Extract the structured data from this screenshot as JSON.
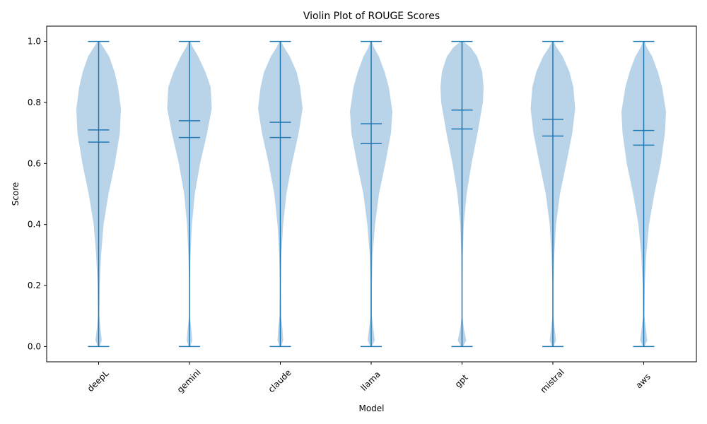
{
  "chart_data": {
    "type": "violin",
    "title": "Violin Plot of ROUGE Scores",
    "xlabel": "Model",
    "ylabel": "Score",
    "ylim": [
      -0.05,
      1.05
    ],
    "yticks": [
      0.0,
      0.2,
      0.4,
      0.6,
      0.8,
      1.0
    ],
    "ytick_labels": [
      "0.0",
      "0.2",
      "0.4",
      "0.6",
      "0.8",
      "1.0"
    ],
    "colors": {
      "body": "#b9d4e9",
      "line": "#1f77b4"
    },
    "categories": [
      "deepL",
      "gemini",
      "claude",
      "llama",
      "gpt",
      "mistral",
      "aws"
    ],
    "series": [
      {
        "name": "deepL",
        "min": 0.0,
        "max": 1.0,
        "mean": 0.71,
        "median": 0.67,
        "density": [
          [
            0.0,
            0.02
          ],
          [
            0.02,
            0.09
          ],
          [
            0.06,
            0.05
          ],
          [
            0.1,
            0.02
          ],
          [
            0.2,
            0.03
          ],
          [
            0.3,
            0.07
          ],
          [
            0.4,
            0.14
          ],
          [
            0.5,
            0.28
          ],
          [
            0.6,
            0.46
          ],
          [
            0.7,
            0.6
          ],
          [
            0.78,
            0.63
          ],
          [
            0.85,
            0.55
          ],
          [
            0.9,
            0.45
          ],
          [
            0.95,
            0.3
          ],
          [
            0.98,
            0.14
          ],
          [
            1.0,
            0.03
          ]
        ]
      },
      {
        "name": "gemini",
        "min": 0.0,
        "max": 1.0,
        "mean": 0.74,
        "median": 0.685,
        "density": [
          [
            0.0,
            0.02
          ],
          [
            0.02,
            0.08
          ],
          [
            0.06,
            0.05
          ],
          [
            0.1,
            0.01
          ],
          [
            0.2,
            0.01
          ],
          [
            0.3,
            0.03
          ],
          [
            0.4,
            0.07
          ],
          [
            0.5,
            0.15
          ],
          [
            0.6,
            0.3
          ],
          [
            0.7,
            0.5
          ],
          [
            0.78,
            0.63
          ],
          [
            0.85,
            0.6
          ],
          [
            0.9,
            0.45
          ],
          [
            0.95,
            0.25
          ],
          [
            0.98,
            0.1
          ],
          [
            1.0,
            0.02
          ]
        ]
      },
      {
        "name": "claude",
        "min": 0.0,
        "max": 1.0,
        "mean": 0.735,
        "median": 0.685,
        "density": [
          [
            0.0,
            0.02
          ],
          [
            0.02,
            0.08
          ],
          [
            0.06,
            0.06
          ],
          [
            0.1,
            0.02
          ],
          [
            0.2,
            0.01
          ],
          [
            0.3,
            0.03
          ],
          [
            0.4,
            0.08
          ],
          [
            0.5,
            0.17
          ],
          [
            0.6,
            0.33
          ],
          [
            0.7,
            0.52
          ],
          [
            0.78,
            0.63
          ],
          [
            0.85,
            0.56
          ],
          [
            0.9,
            0.46
          ],
          [
            0.95,
            0.27
          ],
          [
            0.98,
            0.11
          ],
          [
            1.0,
            0.02
          ]
        ]
      },
      {
        "name": "llama",
        "min": 0.0,
        "max": 1.0,
        "mean": 0.73,
        "median": 0.665,
        "density": [
          [
            0.0,
            0.02
          ],
          [
            0.02,
            0.1
          ],
          [
            0.06,
            0.06
          ],
          [
            0.1,
            0.02
          ],
          [
            0.2,
            0.02
          ],
          [
            0.3,
            0.04
          ],
          [
            0.4,
            0.11
          ],
          [
            0.5,
            0.22
          ],
          [
            0.6,
            0.4
          ],
          [
            0.7,
            0.56
          ],
          [
            0.77,
            0.6
          ],
          [
            0.85,
            0.5
          ],
          [
            0.9,
            0.38
          ],
          [
            0.95,
            0.22
          ],
          [
            0.98,
            0.08
          ],
          [
            1.0,
            0.02
          ]
        ]
      },
      {
        "name": "gpt",
        "min": 0.0,
        "max": 1.0,
        "mean": 0.775,
        "median": 0.713,
        "density": [
          [
            0.0,
            0.03
          ],
          [
            0.02,
            0.12
          ],
          [
            0.06,
            0.05
          ],
          [
            0.1,
            0.01
          ],
          [
            0.2,
            0.01
          ],
          [
            0.3,
            0.02
          ],
          [
            0.4,
            0.05
          ],
          [
            0.5,
            0.13
          ],
          [
            0.6,
            0.27
          ],
          [
            0.7,
            0.44
          ],
          [
            0.8,
            0.59
          ],
          [
            0.85,
            0.61
          ],
          [
            0.9,
            0.57
          ],
          [
            0.95,
            0.43
          ],
          [
            0.98,
            0.25
          ],
          [
            1.0,
            0.04
          ]
        ]
      },
      {
        "name": "mistral",
        "min": 0.0,
        "max": 1.0,
        "mean": 0.745,
        "median": 0.69,
        "density": [
          [
            0.0,
            0.02
          ],
          [
            0.02,
            0.09
          ],
          [
            0.06,
            0.05
          ],
          [
            0.1,
            0.01
          ],
          [
            0.2,
            0.01
          ],
          [
            0.3,
            0.04
          ],
          [
            0.4,
            0.09
          ],
          [
            0.5,
            0.2
          ],
          [
            0.6,
            0.38
          ],
          [
            0.7,
            0.55
          ],
          [
            0.78,
            0.63
          ],
          [
            0.85,
            0.58
          ],
          [
            0.9,
            0.47
          ],
          [
            0.95,
            0.28
          ],
          [
            0.98,
            0.11
          ],
          [
            1.0,
            0.02
          ]
        ]
      },
      {
        "name": "aws",
        "min": 0.0,
        "max": 1.0,
        "mean": 0.708,
        "median": 0.66,
        "density": [
          [
            0.0,
            0.02
          ],
          [
            0.02,
            0.1
          ],
          [
            0.06,
            0.06
          ],
          [
            0.1,
            0.02
          ],
          [
            0.2,
            0.03
          ],
          [
            0.3,
            0.07
          ],
          [
            0.4,
            0.15
          ],
          [
            0.5,
            0.3
          ],
          [
            0.6,
            0.48
          ],
          [
            0.7,
            0.6
          ],
          [
            0.77,
            0.63
          ],
          [
            0.85,
            0.52
          ],
          [
            0.9,
            0.4
          ],
          [
            0.95,
            0.24
          ],
          [
            0.98,
            0.09
          ],
          [
            1.0,
            0.02
          ]
        ]
      }
    ]
  }
}
